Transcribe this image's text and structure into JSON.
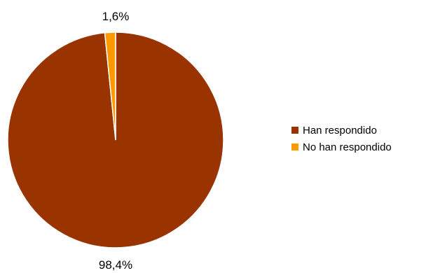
{
  "chart_data": {
    "type": "pie",
    "categories": [
      "Han respondido",
      "No han respondido"
    ],
    "values": [
      98.4,
      1.6
    ],
    "data_labels": [
      "98,4%",
      "1,6%"
    ],
    "colors": [
      "#993300",
      "#FF9900"
    ],
    "legend_position": "right"
  }
}
